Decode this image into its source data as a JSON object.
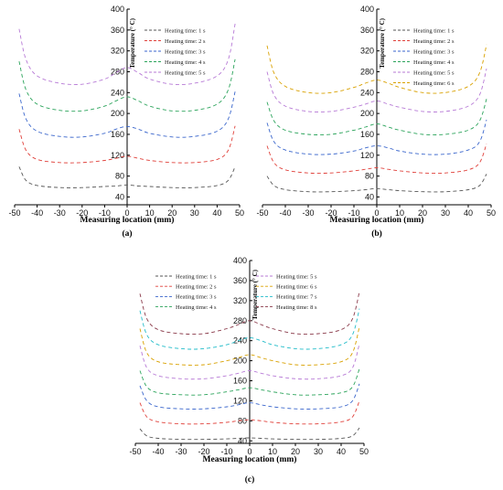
{
  "chart_data": [
    {
      "type": "line",
      "panel_label": "(a)",
      "xlabel": "Measuring location (mm)",
      "ylabel": "Temperature (° C)",
      "xlim": [
        -50,
        50
      ],
      "ylim": [
        25,
        400
      ],
      "x_ticks": [
        -50,
        -40,
        -30,
        -20,
        -10,
        0,
        10,
        20,
        30,
        40,
        50
      ],
      "y_ticks": [
        40,
        80,
        120,
        160,
        200,
        240,
        280,
        320,
        360,
        400
      ],
      "legend_position": "top-right",
      "grid": false,
      "series": [
        {
          "name": "Heating time: 1 s",
          "color": "#555555",
          "x": [
            -48,
            -45,
            -40,
            -30,
            -20,
            -10,
            -5,
            0,
            5,
            10,
            20,
            30,
            40,
            45,
            48
          ],
          "y": [
            98,
            72,
            62,
            58,
            58,
            60,
            61,
            63,
            61,
            60,
            58,
            58,
            62,
            72,
            98
          ]
        },
        {
          "name": "Heating time: 2 s",
          "color": "#e0403a",
          "x": [
            -48,
            -45,
            -40,
            -30,
            -20,
            -10,
            -5,
            0,
            5,
            10,
            20,
            30,
            40,
            45,
            48
          ],
          "y": [
            170,
            130,
            112,
            106,
            106,
            110,
            114,
            118,
            114,
            110,
            106,
            106,
            112,
            130,
            176
          ]
        },
        {
          "name": "Heating time: 3 s",
          "color": "#3a66cc",
          "x": [
            -48,
            -45,
            -40,
            -30,
            -20,
            -10,
            -5,
            0,
            5,
            10,
            20,
            30,
            40,
            45,
            48
          ],
          "y": [
            238,
            190,
            166,
            156,
            155,
            162,
            170,
            175,
            170,
            162,
            155,
            156,
            166,
            190,
            242
          ]
        },
        {
          "name": "Heating time: 4 s",
          "color": "#2aa35a",
          "x": [
            -48,
            -45,
            -40,
            -30,
            -20,
            -10,
            -5,
            0,
            5,
            10,
            20,
            30,
            40,
            45,
            48
          ],
          "y": [
            300,
            246,
            218,
            206,
            205,
            214,
            224,
            232,
            224,
            214,
            205,
            206,
            218,
            246,
            304
          ]
        },
        {
          "name": "Heating time: 5 s",
          "color": "#b77ad6",
          "x": [
            -48,
            -45,
            -40,
            -30,
            -20,
            -10,
            -5,
            0,
            5,
            10,
            20,
            30,
            40,
            45,
            48
          ],
          "y": [
            362,
            304,
            272,
            258,
            256,
            266,
            278,
            288,
            278,
            266,
            256,
            258,
            272,
            304,
            372
          ]
        }
      ]
    },
    {
      "type": "line",
      "panel_label": "(b)",
      "xlabel": "Measuring location (mm)",
      "ylabel": "Temperature (° C)",
      "xlim": [
        -50,
        50
      ],
      "ylim": [
        25,
        400
      ],
      "x_ticks": [
        -50,
        -40,
        -30,
        -20,
        -10,
        0,
        10,
        20,
        30,
        40,
        50
      ],
      "y_ticks": [
        40,
        80,
        120,
        160,
        200,
        240,
        280,
        320,
        360,
        400
      ],
      "legend_position": "top-right",
      "grid": false,
      "series": [
        {
          "name": "Heating time: 1 s",
          "color": "#555555",
          "x": [
            -48,
            -45,
            -40,
            -30,
            -20,
            -10,
            -5,
            0,
            5,
            10,
            20,
            30,
            40,
            45,
            48
          ],
          "y": [
            80,
            62,
            54,
            50,
            50,
            52,
            54,
            56,
            54,
            52,
            50,
            50,
            54,
            62,
            84
          ]
        },
        {
          "name": "Heating time: 2 s",
          "color": "#e0403a",
          "x": [
            -48,
            -45,
            -40,
            -30,
            -20,
            -10,
            -5,
            0,
            5,
            10,
            20,
            30,
            40,
            45,
            48
          ],
          "y": [
            138,
            106,
            92,
            86,
            86,
            90,
            93,
            96,
            93,
            90,
            86,
            86,
            92,
            106,
            142
          ]
        },
        {
          "name": "Heating time: 3 s",
          "color": "#3a66cc",
          "x": [
            -48,
            -45,
            -40,
            -30,
            -20,
            -10,
            -5,
            0,
            5,
            10,
            20,
            30,
            40,
            45,
            48
          ],
          "y": [
            182,
            146,
            130,
            122,
            122,
            128,
            134,
            138,
            134,
            128,
            122,
            122,
            130,
            146,
            188
          ]
        },
        {
          "name": "Heating time: 4 s",
          "color": "#2aa35a",
          "x": [
            -48,
            -45,
            -40,
            -30,
            -20,
            -10,
            -5,
            0,
            5,
            10,
            20,
            30,
            40,
            45,
            48
          ],
          "y": [
            222,
            186,
            168,
            160,
            160,
            168,
            174,
            180,
            174,
            168,
            160,
            160,
            168,
            186,
            228
          ]
        },
        {
          "name": "Heating time: 5 s",
          "color": "#b77ad6",
          "x": [
            -48,
            -45,
            -40,
            -30,
            -20,
            -10,
            -5,
            0,
            5,
            10,
            20,
            30,
            40,
            45,
            48
          ],
          "y": [
            280,
            236,
            214,
            204,
            204,
            212,
            218,
            224,
            218,
            212,
            204,
            204,
            214,
            236,
            286
          ]
        },
        {
          "name": "Heating time: 6 s",
          "color": "#d9a100",
          "x": [
            -48,
            -45,
            -40,
            -30,
            -20,
            -10,
            -5,
            0,
            5,
            10,
            20,
            30,
            40,
            45,
            48
          ],
          "y": [
            330,
            278,
            252,
            240,
            240,
            250,
            258,
            264,
            258,
            250,
            240,
            240,
            252,
            278,
            332
          ]
        }
      ]
    },
    {
      "type": "line",
      "panel_label": "(c)",
      "xlabel": "Measuring location (mm)",
      "ylabel": "Temperature (° C)",
      "xlim": [
        -50,
        50
      ],
      "ylim": [
        35,
        400
      ],
      "x_ticks": [
        -50,
        -40,
        -30,
        -20,
        -10,
        0,
        10,
        20,
        30,
        40,
        50
      ],
      "y_ticks": [
        40,
        80,
        120,
        160,
        200,
        240,
        280,
        320,
        360,
        400
      ],
      "legend_position": "top",
      "grid": false,
      "series": [
        {
          "name": "Heating time: 1 s",
          "color": "#555555",
          "x": [
            -48,
            -45,
            -40,
            -30,
            -20,
            -10,
            -5,
            0,
            5,
            10,
            20,
            30,
            40,
            45,
            48
          ],
          "y": [
            64,
            50,
            45,
            43,
            43,
            44,
            45,
            46,
            45,
            44,
            43,
            43,
            45,
            50,
            66
          ]
        },
        {
          "name": "Heating time: 2 s",
          "color": "#e0403a",
          "x": [
            -48,
            -45,
            -40,
            -30,
            -20,
            -10,
            -5,
            0,
            5,
            10,
            20,
            30,
            40,
            45,
            48
          ],
          "y": [
            116,
            88,
            78,
            74,
            74,
            77,
            80,
            82,
            80,
            77,
            74,
            74,
            78,
            88,
            120
          ]
        },
        {
          "name": "Heating time: 3 s",
          "color": "#3a66cc",
          "x": [
            -48,
            -45,
            -40,
            -30,
            -20,
            -10,
            -5,
            0,
            5,
            10,
            20,
            30,
            40,
            45,
            48
          ],
          "y": [
            150,
            120,
            108,
            104,
            104,
            108,
            112,
            116,
            112,
            108,
            104,
            104,
            108,
            120,
            154
          ]
        },
        {
          "name": "Heating time: 4 s",
          "color": "#2aa35a",
          "x": [
            -48,
            -45,
            -40,
            -30,
            -20,
            -10,
            -5,
            0,
            5,
            10,
            20,
            30,
            40,
            45,
            48
          ],
          "y": [
            180,
            148,
            136,
            132,
            132,
            138,
            142,
            146,
            142,
            138,
            132,
            132,
            136,
            148,
            184
          ]
        },
        {
          "name": "Heating time: 5 s",
          "color": "#b77ad6",
          "x": [
            -48,
            -45,
            -40,
            -30,
            -20,
            -10,
            -5,
            0,
            5,
            10,
            20,
            30,
            40,
            45,
            48
          ],
          "y": [
            230,
            186,
            170,
            164,
            164,
            170,
            175,
            180,
            175,
            170,
            164,
            164,
            170,
            186,
            234
          ]
        },
        {
          "name": "Heating time: 6 s",
          "color": "#d9a100",
          "x": [
            -48,
            -45,
            -40,
            -30,
            -20,
            -10,
            -5,
            0,
            5,
            10,
            20,
            30,
            40,
            45,
            48
          ],
          "y": [
            264,
            216,
            198,
            192,
            192,
            200,
            206,
            212,
            206,
            200,
            192,
            192,
            198,
            216,
            268
          ]
        },
        {
          "name": "Heating time: 7 s",
          "color": "#22bcc9",
          "x": [
            -48,
            -45,
            -40,
            -30,
            -20,
            -10,
            -5,
            0,
            5,
            10,
            20,
            30,
            40,
            45,
            48
          ],
          "y": [
            300,
            252,
            232,
            224,
            224,
            232,
            240,
            246,
            240,
            232,
            224,
            224,
            232,
            252,
            304
          ]
        },
        {
          "name": "Heating time: 8 s",
          "color": "#8a3a4a",
          "x": [
            -48,
            -45,
            -40,
            -30,
            -20,
            -10,
            -5,
            0,
            5,
            10,
            20,
            30,
            40,
            45,
            48
          ],
          "y": [
            334,
            284,
            262,
            254,
            254,
            264,
            272,
            280,
            272,
            264,
            254,
            254,
            262,
            284,
            338
          ]
        }
      ]
    }
  ]
}
